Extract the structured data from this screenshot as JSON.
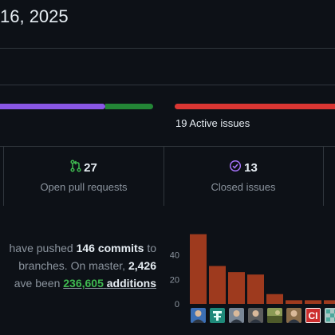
{
  "header": {
    "title": "16, 2025"
  },
  "progress": {
    "active_issues_label": "19 Active issues",
    "merged_fraction": 0.72,
    "open_fraction": 0.28
  },
  "stats": [
    {
      "count": "27",
      "label": "Open pull requests",
      "icon": "git-pull-request-icon",
      "color": "#3fb950"
    },
    {
      "count": "13",
      "label": "Closed issues",
      "icon": "issue-closed-icon",
      "color": "#a371f7"
    }
  ],
  "summary": {
    "line1_pre": "have pushed",
    "commits": "146 commits",
    "line1_post": "to",
    "line2_pre": "branches. On master,",
    "files": "2,426",
    "line3_pre": "ave been",
    "additions_num": "236,605",
    "additions_word": "additions"
  },
  "chart_data": {
    "type": "bar",
    "yticks": [
      "0",
      "20",
      "40"
    ],
    "ylim": [
      0,
      60
    ],
    "values": [
      57,
      31,
      26,
      24,
      8,
      3,
      3,
      3
    ],
    "bar_color": "#9e3a1e",
    "avatars": [
      {
        "icon": "person-photo-icon",
        "color": "#3b6fb5"
      },
      {
        "icon": "t-letter-avatar-icon",
        "color": "#1f8a7a"
      },
      {
        "icon": "person-photo-icon",
        "color": "#7a8796"
      },
      {
        "icon": "person-photo-icon",
        "color": "#5c5c5c"
      },
      {
        "icon": "landscape-photo-icon",
        "color": "#6d7b3a"
      },
      {
        "icon": "person-photo-icon",
        "color": "#8a6d4a"
      },
      {
        "icon": "ci-logo-icon",
        "color": "#cc2e2e"
      },
      {
        "icon": "identicon-icon",
        "color": "#a8c7c4"
      }
    ]
  }
}
